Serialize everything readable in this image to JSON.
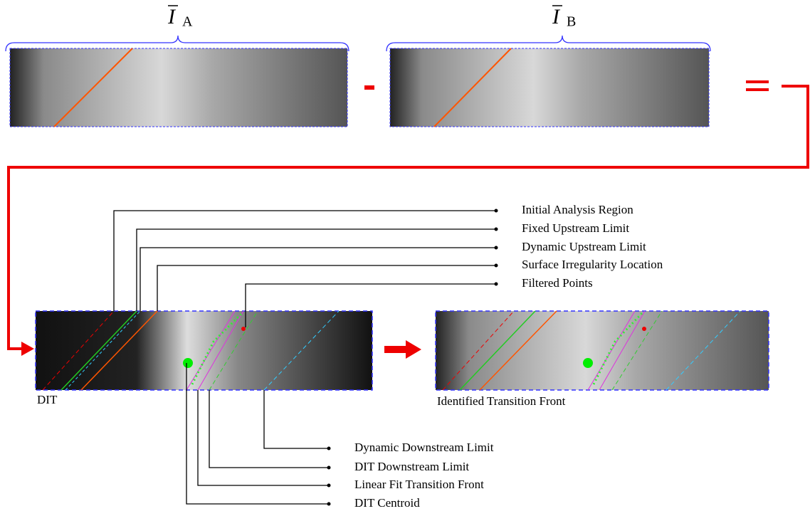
{
  "top": {
    "image_a": {
      "symbol": "I",
      "subscript": "A"
    },
    "image_b": {
      "symbol": "I",
      "subscript": "B"
    }
  },
  "captions": {
    "dit": "DIT",
    "result": "Identified Transition Front"
  },
  "upper_labels": [
    "Initial Analysis Region",
    "Fixed Upstream Limit",
    "Dynamic Upstream Limit",
    "Surface Irregularity Location",
    "Filtered Points"
  ],
  "lower_labels": [
    "Dynamic Downstream Limit",
    "DIT Downstream Limit",
    "Linear Fit Transition Front",
    "DIT Centroid"
  ]
}
